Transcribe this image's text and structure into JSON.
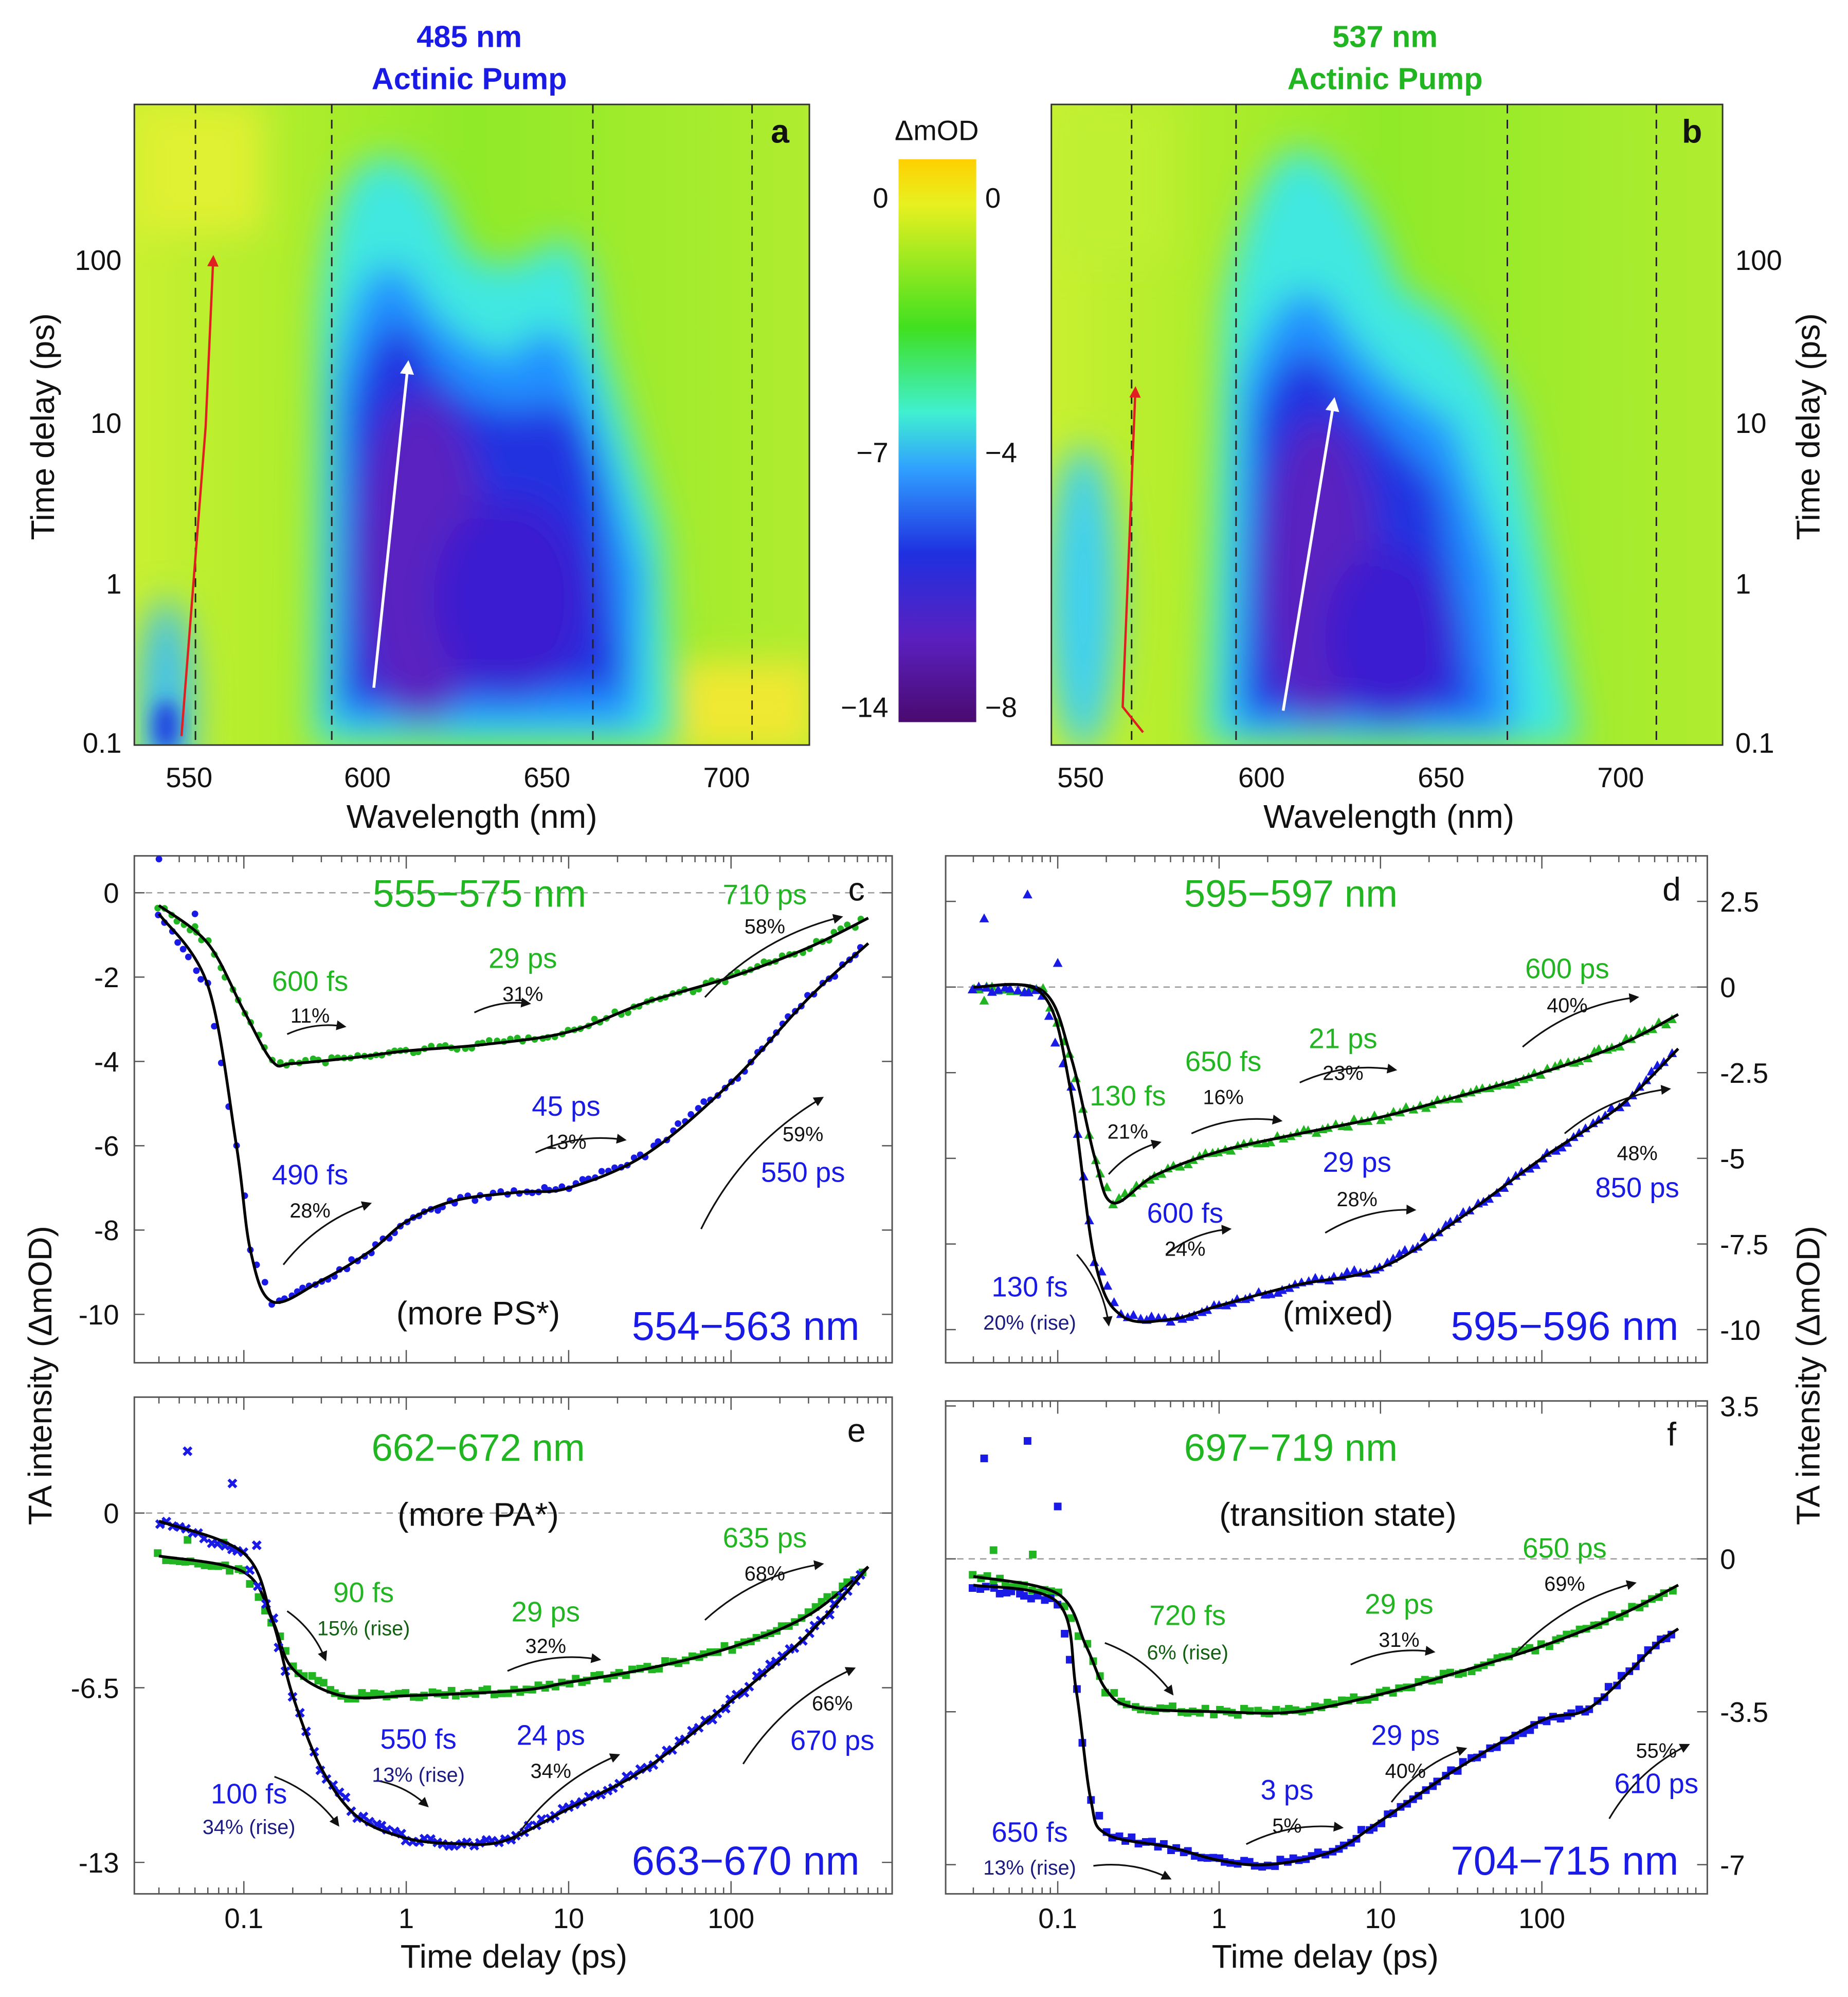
{
  "colors": {
    "green": "#22b522",
    "blue": "#1a1ae6",
    "darkblue": "#1a1a80",
    "darkgreen": "#126012",
    "black": "#111111",
    "red": "#e02020"
  },
  "chart_data": [
    {
      "type": "heatmap",
      "panel": "a",
      "title": [
        "485 nm",
        "Actinic Pump"
      ],
      "xlabel": "Wavelength (nm)",
      "ylabel": "Time delay (ps)",
      "xticks": [
        "550",
        "600",
        "650",
        "700"
      ],
      "yticks": [
        "0.1",
        "1",
        "10",
        "100"
      ],
      "xlim": [
        535,
        728
      ],
      "ylim": [
        0.1,
        900
      ],
      "yscale": "log",
      "dashed_lines_nm": [
        556,
        594,
        667,
        711
      ],
      "panel_label": "a"
    },
    {
      "type": "colorbar",
      "label": "ΔmOD",
      "left_ticks": [
        "0",
        "−7",
        "−14"
      ],
      "right_ticks": [
        "0",
        "−4",
        "−8"
      ]
    },
    {
      "type": "heatmap",
      "panel": "b",
      "title": [
        "537 nm",
        "Actinic Pump"
      ],
      "xlabel": "Wavelength (nm)",
      "ylabel": "Time delay (ps)",
      "xticks": [
        "550",
        "600",
        "650",
        "700"
      ],
      "yticks": [
        "0.1",
        "1",
        "10",
        "100"
      ],
      "xlim": [
        545,
        730
      ],
      "ylim": [
        0.1,
        900
      ],
      "yscale": "log",
      "dashed_lines_nm": [
        565,
        594,
        667,
        708
      ],
      "panel_label": "b"
    },
    {
      "type": "scatter+line",
      "panel": "c",
      "panel_label": "c",
      "xscale": "log",
      "xlim": [
        0.025,
        800
      ],
      "ylim": [
        -11.1,
        1
      ],
      "ylabel": "TA intensity (ΔmOD)",
      "yticks": [
        "0",
        "-2",
        "-4",
        "-6",
        "-8",
        "-10"
      ],
      "ytick_values": [
        0,
        -2,
        -4,
        -6,
        -8,
        -10
      ],
      "series": [
        {
          "name": "555−575 nm",
          "color": "green",
          "marker": "circle",
          "fit": [
            [
              0.03,
              -0.3
            ],
            [
              0.06,
              -1.2
            ],
            [
              0.1,
              -2.8
            ],
            [
              0.15,
              -4.0
            ],
            [
              0.2,
              -4.05
            ],
            [
              0.5,
              -3.9
            ],
            [
              1,
              -3.75
            ],
            [
              3,
              -3.6
            ],
            [
              10,
              -3.3
            ],
            [
              30,
              -2.6
            ],
            [
              100,
              -2.0
            ],
            [
              300,
              -1.3
            ],
            [
              700,
              -0.6
            ]
          ],
          "outliers": [
            [
              0.05,
              -0.8
            ]
          ]
        },
        {
          "name": "554−563 nm",
          "color": "blue",
          "marker": "circle",
          "fit": [
            [
              0.03,
              -0.5
            ],
            [
              0.06,
              -2.2
            ],
            [
              0.09,
              -6
            ],
            [
              0.11,
              -8.5
            ],
            [
              0.15,
              -9.7
            ],
            [
              0.3,
              -9.2
            ],
            [
              0.6,
              -8.5
            ],
            [
              1,
              -7.8
            ],
            [
              2,
              -7.3
            ],
            [
              5,
              -7.1
            ],
            [
              10,
              -7.0
            ],
            [
              30,
              -6.2
            ],
            [
              100,
              -4.5
            ],
            [
              300,
              -2.5
            ],
            [
              700,
              -1.2
            ]
          ],
          "outliers": [
            [
              0.03,
              0.8
            ],
            [
              0.05,
              -0.5
            ]
          ]
        }
      ],
      "annotations": [
        "555−575 nm",
        "710 ps",
        "58%",
        "29 ps",
        "31%",
        "600 fs",
        "11%",
        "45 ps",
        "13%",
        "490 fs",
        "28%",
        "59%",
        "550 ps",
        "(more PS*)",
        "554−563 nm"
      ]
    },
    {
      "type": "scatter+line",
      "panel": "d",
      "panel_label": "d",
      "xscale": "log",
      "xlim": [
        0.025,
        900
      ],
      "ylim": [
        -10.4,
        4.0
      ],
      "ylabel": "TA intensity (ΔmOD)",
      "yticks": [
        "2.5",
        "0",
        "-2.5",
        "-5",
        "-7.5",
        "-10"
      ],
      "ytick_values": [
        2.5,
        0,
        -2.5,
        -5,
        -7.5,
        -10
      ],
      "series": [
        {
          "name": "595−597 nm",
          "color": "green",
          "marker": "triangle",
          "fit": [
            [
              0.03,
              0
            ],
            [
              0.08,
              -0.1
            ],
            [
              0.12,
              -2
            ],
            [
              0.17,
              -5
            ],
            [
              0.22,
              -6.3
            ],
            [
              0.4,
              -5.5
            ],
            [
              1,
              -4.8
            ],
            [
              3,
              -4.3
            ],
            [
              10,
              -3.8
            ],
            [
              30,
              -3.2
            ],
            [
              100,
              -2.5
            ],
            [
              300,
              -1.7
            ],
            [
              700,
              -0.8
            ]
          ],
          "outliers": [
            [
              0.035,
              -0.4
            ]
          ]
        },
        {
          "name": "595−596 nm",
          "color": "blue",
          "marker": "triangle",
          "fit": [
            [
              0.03,
              0
            ],
            [
              0.08,
              -0.2
            ],
            [
              0.12,
              -3
            ],
            [
              0.17,
              -8
            ],
            [
              0.25,
              -9.6
            ],
            [
              0.5,
              -9.7
            ],
            [
              1,
              -9.3
            ],
            [
              3,
              -8.7
            ],
            [
              10,
              -8.2
            ],
            [
              30,
              -6.8
            ],
            [
              100,
              -5
            ],
            [
              300,
              -3.5
            ],
            [
              700,
              -1.8
            ]
          ],
          "outliers": [
            [
              0.035,
              2.0
            ],
            [
              0.065,
              2.7
            ],
            [
              0.1,
              0.7
            ]
          ]
        }
      ],
      "annotations": [
        "595−597 nm",
        "600 ps",
        "40%",
        "21 ps",
        "23%",
        "650 fs",
        "16%",
        "130 fs",
        "21%",
        "29 ps",
        "28%",
        "48%",
        "850 ps",
        "600 fs",
        "24%",
        "130 fs",
        "20% (rise)",
        "(mixed)",
        "595−596 nm"
      ]
    },
    {
      "type": "scatter+line",
      "panel": "e",
      "panel_label": "e",
      "xscale": "log",
      "xlim": [
        0.025,
        800
      ],
      "ylim": [
        -14.2,
        4.3
      ],
      "xlabel": "Time delay (ps)",
      "ylabel": "TA intensity (ΔmOD)",
      "xticks": [
        "0.1",
        "1",
        "10",
        "100"
      ],
      "yticks": [
        "0",
        "-6.5",
        "-13"
      ],
      "ytick_values": [
        0,
        -6.5,
        -13
      ],
      "series": [
        {
          "name": "662−672 nm",
          "color": "green",
          "marker": "square",
          "fit": [
            [
              0.03,
              -1.6
            ],
            [
              0.1,
              -2.2
            ],
            [
              0.15,
              -4
            ],
            [
              0.2,
              -5.8
            ],
            [
              0.4,
              -6.8
            ],
            [
              1,
              -6.8
            ],
            [
              5,
              -6.6
            ],
            [
              10,
              -6.3
            ],
            [
              30,
              -5.8
            ],
            [
              100,
              -5
            ],
            [
              300,
              -3.8
            ],
            [
              700,
              -2.0
            ]
          ],
          "outliers": [
            [
              0.045,
              -1.0
            ],
            [
              0.075,
              -1.1
            ]
          ]
        },
        {
          "name": "663−670 nm",
          "color": "blue",
          "marker": "cross",
          "fit": [
            [
              0.03,
              -0.3
            ],
            [
              0.1,
              -1.5
            ],
            [
              0.15,
              -4
            ],
            [
              0.2,
              -6.8
            ],
            [
              0.3,
              -9.5
            ],
            [
              0.5,
              -11.3
            ],
            [
              1,
              -12.1
            ],
            [
              2,
              -12.3
            ],
            [
              4,
              -12.2
            ],
            [
              10,
              -11
            ],
            [
              30,
              -9.5
            ],
            [
              100,
              -7
            ],
            [
              300,
              -4.5
            ],
            [
              700,
              -2.0
            ]
          ],
          "outliers": [
            [
              0.045,
              2.3
            ],
            [
              0.085,
              1.1
            ],
            [
              0.12,
              -1.2
            ]
          ]
        }
      ],
      "annotations": [
        "662−672 nm",
        "(more PA*)",
        "635 ps",
        "68%",
        "90 fs",
        "15% (rise)",
        "29 ps",
        "32%",
        "550 fs",
        "13% (rise)",
        "24 ps",
        "34%",
        "100 fs",
        "34% (rise)",
        "66%",
        "670 ps",
        "663−670 nm"
      ]
    },
    {
      "type": "scatter+line",
      "panel": "f",
      "panel_label": "f",
      "xscale": "log",
      "xlim": [
        0.025,
        900
      ],
      "ylim": [
        -7.6,
        3.6
      ],
      "xlabel": "Time delay (ps)",
      "ylabel": "TA intensity (ΔmOD)",
      "xticks": [
        "0.1",
        "1",
        "10",
        "100"
      ],
      "yticks": [
        "3.5",
        "0",
        "-3.5",
        "-7"
      ],
      "ytick_values": [
        3.5,
        0,
        -3.5,
        -7
      ],
      "series": [
        {
          "name": "697−719 nm",
          "color": "green",
          "marker": "square",
          "fit": [
            [
              0.03,
              -0.4
            ],
            [
              0.1,
              -0.8
            ],
            [
              0.15,
              -2
            ],
            [
              0.2,
              -3
            ],
            [
              0.3,
              -3.4
            ],
            [
              1,
              -3.5
            ],
            [
              3,
              -3.5
            ],
            [
              10,
              -3.1
            ],
            [
              30,
              -2.6
            ],
            [
              100,
              -2.0
            ],
            [
              300,
              -1.3
            ],
            [
              700,
              -0.6
            ]
          ],
          "outliers": [
            [
              0.04,
              0.2
            ],
            [
              0.07,
              0.1
            ]
          ]
        },
        {
          "name": "704−715 nm",
          "color": "blue",
          "marker": "square",
          "fit": [
            [
              0.03,
              -0.6
            ],
            [
              0.1,
              -1
            ],
            [
              0.13,
              -3
            ],
            [
              0.16,
              -5.5
            ],
            [
              0.2,
              -6.3
            ],
            [
              0.5,
              -6.6
            ],
            [
              1,
              -6.9
            ],
            [
              2,
              -7
            ],
            [
              5,
              -6.7
            ],
            [
              10,
              -6.0
            ],
            [
              30,
              -4.8
            ],
            [
              100,
              -3.7
            ],
            [
              200,
              -3.4
            ],
            [
              500,
              -2.0
            ],
            [
              700,
              -1.6
            ]
          ],
          "outliers": [
            [
              0.035,
              2.3
            ],
            [
              0.065,
              2.7
            ],
            [
              0.1,
              1.2
            ]
          ]
        }
      ],
      "annotations": [
        "697−719 nm",
        "(transition state)",
        "650 ps",
        "69%",
        "720 fs",
        "6% (rise)",
        "29 ps",
        "31%",
        "29 ps",
        "40%",
        "3 ps",
        "5%",
        "650 fs",
        "13% (rise)",
        "55%",
        "610 ps",
        "704−715 nm"
      ]
    }
  ]
}
